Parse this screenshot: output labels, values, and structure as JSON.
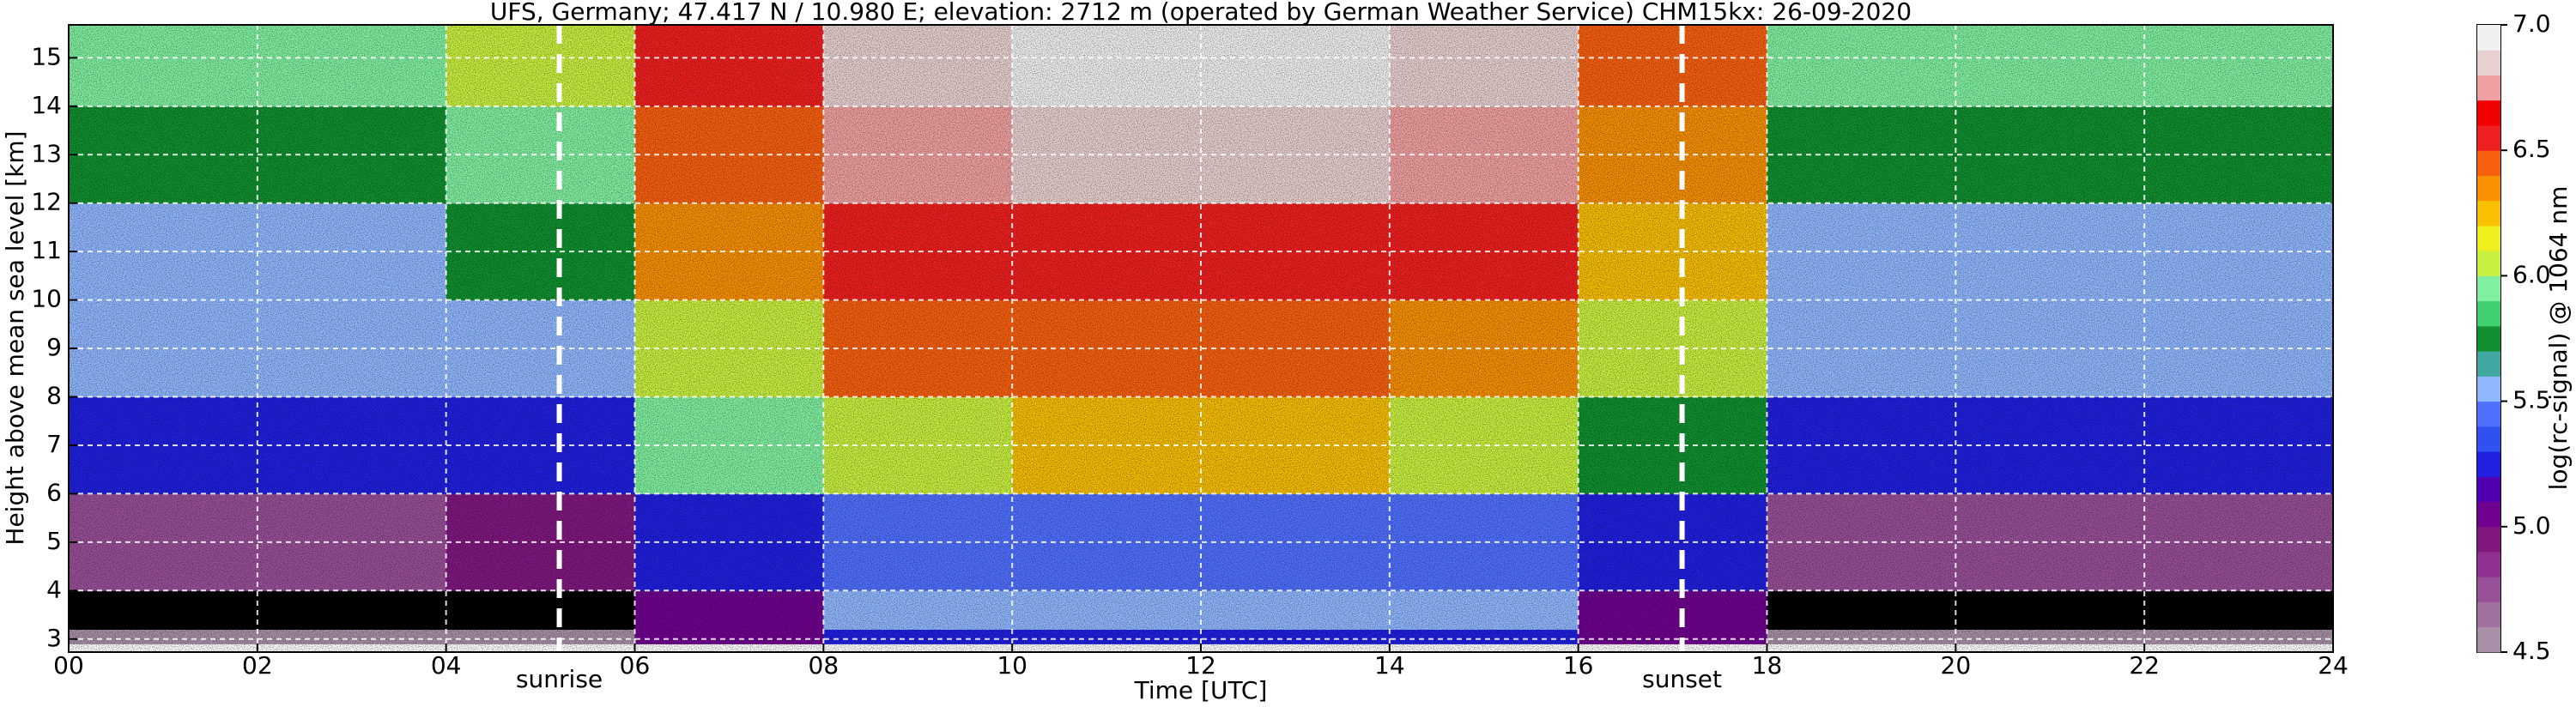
{
  "chart_data": {
    "type": "heatmap",
    "title": "UFS, Germany; 47.417 N / 10.980 E; elevation: 2712 m  (operated by German Weather Service)    CHM15kx: 26-09-2020",
    "x_label": "Time [UTC]",
    "y_label": "Height above mean sea level [km]",
    "colorbar_label": "log(rc-signal) @ 1064 nm",
    "xlim": [
      0,
      24
    ],
    "ylim": [
      2.73,
      15.68
    ],
    "xticks": [
      {
        "value": 0,
        "label": "00"
      },
      {
        "value": 2,
        "label": "02"
      },
      {
        "value": 4,
        "label": "04"
      },
      {
        "value": 6,
        "label": "06"
      },
      {
        "value": 8,
        "label": "08"
      },
      10,
      12,
      14,
      16,
      18,
      20,
      22,
      24
    ],
    "yticks": [
      3,
      4,
      5,
      6,
      7,
      8,
      9,
      10,
      11,
      12,
      13,
      14,
      15
    ],
    "grid": true,
    "time_edges": [
      0,
      2,
      4,
      6,
      8,
      10,
      12,
      14,
      16,
      18,
      20,
      22,
      24
    ],
    "height_edges": [
      2.9,
      3.2,
      4,
      6,
      8,
      10,
      12,
      14,
      15.7
    ],
    "z": [
      [
        4.6,
        4.6,
        4.6,
        5.1,
        5.2,
        5.2,
        5.2,
        5.2,
        5.0,
        4.6,
        4.6,
        4.6
      ],
      [
        4.3,
        4.3,
        4.4,
        5.0,
        5.5,
        5.5,
        5.5,
        5.6,
        5.1,
        4.3,
        4.3,
        4.3
      ],
      [
        4.8,
        4.8,
        4.9,
        5.3,
        5.4,
        5.4,
        5.4,
        5.4,
        5.2,
        4.8,
        4.8,
        4.8
      ],
      [
        5.2,
        5.2,
        5.3,
        5.9,
        6.1,
        6.2,
        6.2,
        6.1,
        5.8,
        5.2,
        5.2,
        5.2
      ],
      [
        5.5,
        5.5,
        5.5,
        6.1,
        6.4,
        6.4,
        6.4,
        6.3,
        6.0,
        5.5,
        5.5,
        5.5
      ],
      [
        5.6,
        5.6,
        5.7,
        6.3,
        6.5,
        6.6,
        6.6,
        6.5,
        6.2,
        5.6,
        5.6,
        5.6
      ],
      [
        5.8,
        5.8,
        5.9,
        6.4,
        6.7,
        6.8,
        6.8,
        6.7,
        6.3,
        5.8,
        5.8,
        5.8
      ],
      [
        5.9,
        5.9,
        6.0,
        6.5,
        6.8,
        6.9,
        6.9,
        6.8,
        6.4,
        5.9,
        5.9,
        5.9
      ]
    ],
    "clim": [
      4.5,
      7.0
    ],
    "under_color": "#000000",
    "colormap": [
      "#a890a8",
      "#a070a0",
      "#985098",
      "#903090",
      "#801880",
      "#700090",
      "#5000b0",
      "#2020e0",
      "#3050f0",
      "#5070ff",
      "#90b8ff",
      "#40a8a0",
      "#109030",
      "#40d070",
      "#80f0a0",
      "#c8f040",
      "#f0f020",
      "#f8c000",
      "#f89000",
      "#f86010",
      "#f02020",
      "#f00000",
      "#f0a0a0",
      "#e8d0d0",
      "#f0f0f0"
    ],
    "colorbar_ticks": [
      {
        "value": 4.5,
        "label": "4.5"
      },
      {
        "value": 5.0,
        "label": "5.0"
      },
      5.5,
      {
        "value": 6.0,
        "label": "6.0"
      },
      6.5,
      {
        "value": 7.0,
        "label": "7.0"
      }
    ],
    "annotations": [
      {
        "text": "sunrise",
        "x": 5.2
      },
      {
        "text": "sunset",
        "x": 17.1
      }
    ]
  }
}
